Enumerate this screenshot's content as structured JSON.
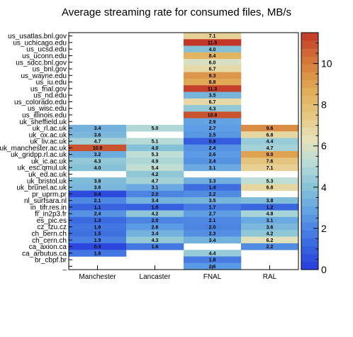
{
  "chart_data": {
    "type": "heatmap",
    "title": "Average streaming rate for consumed files, MB/s",
    "columns": [
      "Manchester",
      "Lancaster",
      "FNAL",
      "RAL"
    ],
    "rows": [
      "us_usatlas.bnl.gov",
      "us_uchicago.edu",
      "us_ucsd.edu",
      "us_uconn.edu",
      "us_sdcc.bnl.gov",
      "us_bnl.gov",
      "us_wayne.edu",
      "us_iu.edu",
      "us_fnal.gov",
      "us_nd.edu",
      "us_colorado.edu",
      "us_wisc.edu",
      "us_illinois.edu",
      "uk_sheffield.uk",
      "uk_rl.ac.uk",
      "uk_ox.ac.uk",
      "uk_liv.ac.uk",
      "uk_manchester.ac.uk",
      "uk_gridpp.rl.ac.uk",
      "uk_ic.ac.uk",
      "uk_esc.qmul.uk",
      "uk_ed.ac.uk",
      "uk_bristol.uk",
      "uk_brunel.ac.uk",
      "pr_uprm.pr",
      "nl_surfsara.nl",
      "in_tifr.res.in",
      "fr_in2p3.fr",
      "es_pic.es",
      "cz_fzu.cz",
      "ch_bern.ch",
      "ch_cern.ch",
      "ca_axion.ca",
      "ca_arbutus.ca",
      "br_cbpf.br",
      "_"
    ],
    "values": [
      [
        null,
        null,
        7.1,
        null
      ],
      [
        null,
        null,
        11.5,
        null
      ],
      [
        null,
        null,
        4.0,
        null
      ],
      [
        null,
        null,
        8.4,
        null
      ],
      [
        null,
        null,
        6.0,
        null
      ],
      [
        null,
        null,
        6.7,
        null
      ],
      [
        null,
        null,
        9.3,
        null
      ],
      [
        null,
        null,
        8.8,
        null
      ],
      [
        null,
        null,
        11.3,
        null
      ],
      [
        null,
        null,
        3.5,
        null
      ],
      [
        null,
        null,
        6.7,
        null
      ],
      [
        null,
        null,
        4.3,
        null
      ],
      [
        null,
        null,
        10.9,
        null
      ],
      [
        null,
        null,
        2.9,
        null
      ],
      [
        3.4,
        5.0,
        2.7,
        9.6
      ],
      [
        3.6,
        null,
        2.5,
        6.8
      ],
      [
        4.7,
        5.1,
        0.9,
        4.4
      ],
      [
        10.9,
        4.0,
        2.4,
        4.7
      ],
      [
        3.2,
        5.3,
        2.6,
        9.0
      ],
      [
        4.3,
        4.9,
        2.4,
        7.6
      ],
      [
        4.0,
        5.4,
        3.1,
        7.1
      ],
      [
        null,
        4.2,
        null,
        null
      ],
      [
        3.8,
        4.7,
        3.3,
        5.3
      ],
      [
        3.6,
        3.1,
        1.4,
        6.8
      ],
      [
        0.4,
        2.0,
        2.2,
        null
      ],
      [
        2.1,
        3.4,
        3.5,
        3.8
      ],
      [
        1.1,
        1.0,
        1.7,
        1.2
      ],
      [
        2.4,
        4.2,
        2.7,
        4.8
      ],
      [
        1.3,
        2.0,
        2.1,
        3.1
      ],
      [
        1.6,
        2.6,
        2.0,
        3.6
      ],
      [
        1.5,
        3.4,
        2.3,
        4.2
      ],
      [
        1.9,
        4.3,
        3.4,
        6.2
      ],
      [
        0.3,
        1.6,
        null,
        2.2
      ],
      [
        1.6,
        null,
        4.4,
        null
      ],
      [
        null,
        null,
        1.8,
        null
      ],
      [
        null,
        null,
        2.6,
        null
      ]
    ],
    "zlim": [
      0,
      11.5
    ],
    "z_ticks": [
      0,
      2,
      4,
      6,
      8,
      10
    ],
    "colorbar": "right",
    "grid": false
  }
}
